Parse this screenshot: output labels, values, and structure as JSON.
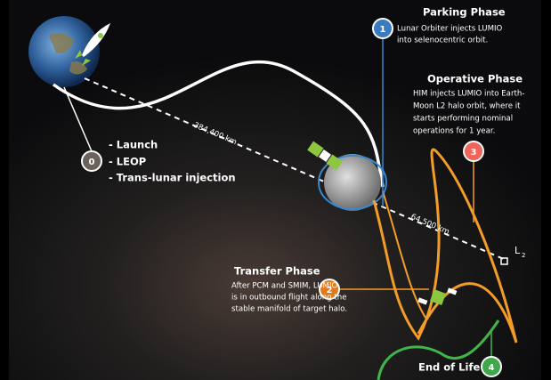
{
  "phases": {
    "launch": {
      "number": "0",
      "items": [
        "- Launch",
        "- LEOP",
        "- Trans-lunar injection"
      ]
    },
    "parking": {
      "number": "1",
      "title": "Parking Phase",
      "lines": [
        "Lunar Orbiter injects LUMIO",
        "into selenocentric orbit."
      ]
    },
    "transfer": {
      "number": "2",
      "title": "Transfer Phase",
      "lines": [
        "After PCM and SMIM, LUMIO",
        "is in outbound flight along the",
        "stable manifold of target halo."
      ]
    },
    "operative": {
      "number": "3",
      "title": "Operative Phase",
      "lines": [
        "HIM injects LUMIO into Earth-",
        "Moon L2 halo orbit, where it",
        "starts performing nominal",
        "operations for 1 year."
      ]
    },
    "end": {
      "number": "4",
      "title": "End of Life"
    }
  },
  "distances": {
    "earth_moon": "384,400 km",
    "moon_l2": "64,500 km"
  },
  "l2": {
    "letter": "L",
    "subscript": "2"
  }
}
